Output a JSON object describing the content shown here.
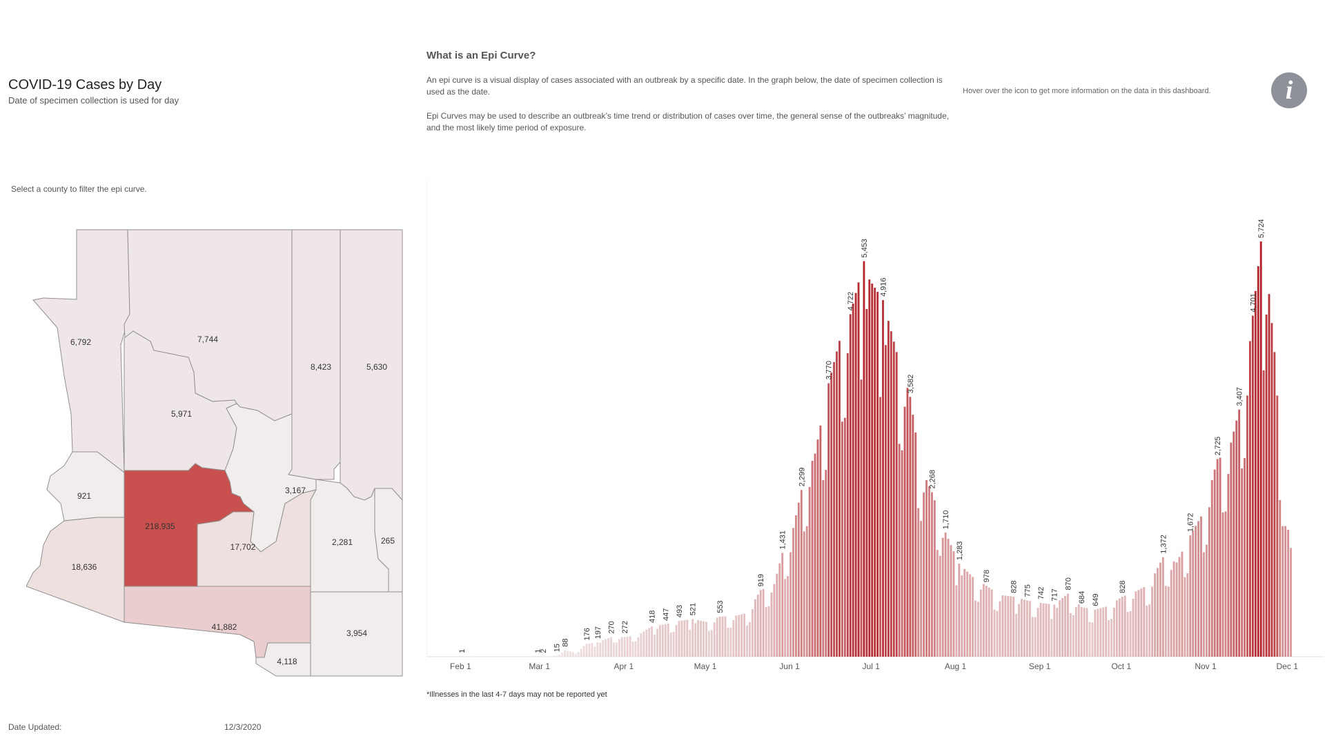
{
  "header": {
    "title": "COVID-19 Cases by Day",
    "subtitle": "Date of specimen collection is used for day"
  },
  "info": {
    "heading": "What is an Epi Curve?",
    "paragraph1": "An epi curve is a visual display of cases associated with an outbreak by a specific date. In the graph below, the date of specimen collection is used as the date.",
    "paragraph2": "Epi Curves may be used to describe an outbreak’s time trend or distribution of cases over time, the general sense of the outbreaks’ magnitude, and the most likely time period of exposure.",
    "hover_hint": "Hover over the icon to get more information on the data in this dashboard.",
    "icon_glyph": "i"
  },
  "map": {
    "instruction": "Select a county to filter the epi curve.",
    "counties": [
      {
        "id": "mohave",
        "value": "6,792",
        "color": "#efe7e7"
      },
      {
        "id": "coconino",
        "value": "7,744",
        "color": "#efe7e7"
      },
      {
        "id": "navajo",
        "value": "8,423",
        "color": "#efe7e7"
      },
      {
        "id": "apache",
        "value": "5,630",
        "color": "#efe7e7"
      },
      {
        "id": "yavapai",
        "value": "5,971",
        "color": "#efe7e7"
      },
      {
        "id": "lapaz",
        "value": "921",
        "color": "#f1eded"
      },
      {
        "id": "maricopa",
        "value": "218,935",
        "color": "#c85150"
      },
      {
        "id": "gila",
        "value": "3,167",
        "color": "#f1eded"
      },
      {
        "id": "yuma",
        "value": "18,636",
        "color": "#efe0e0"
      },
      {
        "id": "pinal",
        "value": "17,702",
        "color": "#efe0e0"
      },
      {
        "id": "graham",
        "value": "2,281",
        "color": "#f1eded"
      },
      {
        "id": "greenlee",
        "value": "265",
        "color": "#f1eded"
      },
      {
        "id": "pima",
        "value": "41,882",
        "color": "#eacdce"
      },
      {
        "id": "cochise",
        "value": "3,954",
        "color": "#f1eded"
      },
      {
        "id": "santacruz",
        "value": "4,118",
        "color": "#f1eded"
      }
    ]
  },
  "chart_data": {
    "type": "bar",
    "title": "COVID-19 Cases by Day",
    "x_axis": {
      "start_date": "2020-01-22",
      "end_date": "2020-12-02",
      "tick_labels": [
        "Feb 1",
        "Mar 1",
        "Apr 1",
        "May 1",
        "Jun 1",
        "Jul 1",
        "Aug 1",
        "Sep 1",
        "Oct 1",
        "Nov 1",
        "Dec 1"
      ],
      "tick_days": [
        10,
        39,
        70,
        100,
        131,
        161,
        192,
        223,
        253,
        284,
        314
      ]
    },
    "ylim": [
      0,
      6200
    ],
    "color_scale": {
      "low": "#f1eaea",
      "high": "#b01c23",
      "max": 5800
    },
    "anchors": [
      [
        0,
        0
      ],
      [
        10,
        1
      ],
      [
        36,
        0
      ],
      [
        38,
        1
      ],
      [
        40,
        2
      ],
      [
        42,
        5
      ],
      [
        45,
        15
      ],
      [
        48,
        88
      ],
      [
        52,
        60
      ],
      [
        56,
        176
      ],
      [
        60,
        197
      ],
      [
        65,
        270
      ],
      [
        70,
        272
      ],
      [
        75,
        300
      ],
      [
        80,
        418
      ],
      [
        85,
        447
      ],
      [
        90,
        493
      ],
      [
        95,
        521
      ],
      [
        100,
        480
      ],
      [
        105,
        553
      ],
      [
        110,
        560
      ],
      [
        115,
        600
      ],
      [
        120,
        919
      ],
      [
        125,
        1000
      ],
      [
        128,
        1431
      ],
      [
        131,
        1600
      ],
      [
        135,
        2299
      ],
      [
        140,
        2800
      ],
      [
        145,
        3770
      ],
      [
        150,
        4500
      ],
      [
        153,
        4722
      ],
      [
        158,
        5453
      ],
      [
        160,
        5200
      ],
      [
        165,
        4916
      ],
      [
        170,
        4200
      ],
      [
        175,
        3582
      ],
      [
        179,
        2600
      ],
      [
        183,
        2268
      ],
      [
        188,
        1710
      ],
      [
        193,
        1283
      ],
      [
        198,
        1100
      ],
      [
        203,
        978
      ],
      [
        208,
        850
      ],
      [
        213,
        828
      ],
      [
        218,
        775
      ],
      [
        223,
        742
      ],
      [
        228,
        717
      ],
      [
        233,
        870
      ],
      [
        238,
        684
      ],
      [
        243,
        649
      ],
      [
        248,
        700
      ],
      [
        253,
        828
      ],
      [
        258,
        900
      ],
      [
        263,
        1000
      ],
      [
        268,
        1372
      ],
      [
        273,
        1300
      ],
      [
        278,
        1672
      ],
      [
        283,
        2000
      ],
      [
        288,
        2725
      ],
      [
        292,
        2800
      ],
      [
        296,
        3407
      ],
      [
        299,
        4000
      ],
      [
        301,
        4701
      ],
      [
        304,
        5724
      ],
      [
        307,
        5000
      ],
      [
        309,
        4200
      ],
      [
        311,
        3000
      ],
      [
        313,
        2000
      ],
      [
        315,
        1500
      ]
    ],
    "data_labels": [
      {
        "day": 10,
        "value": 1
      },
      {
        "day": 38,
        "value": 1
      },
      {
        "day": 40,
        "value": 2
      },
      {
        "day": 45,
        "value": 15
      },
      {
        "day": 48,
        "value": 88
      },
      {
        "day": 56,
        "value": 176
      },
      {
        "day": 60,
        "value": 197
      },
      {
        "day": 65,
        "value": 270
      },
      {
        "day": 70,
        "value": 272
      },
      {
        "day": 80,
        "value": 418
      },
      {
        "day": 85,
        "value": 447
      },
      {
        "day": 90,
        "value": 493
      },
      {
        "day": 95,
        "value": 521
      },
      {
        "day": 105,
        "value": 553
      },
      {
        "day": 120,
        "value": 919
      },
      {
        "day": 128,
        "value": 1431
      },
      {
        "day": 135,
        "value": 2299
      },
      {
        "day": 145,
        "value": 3770
      },
      {
        "day": 153,
        "value": 4722
      },
      {
        "day": 158,
        "value": 5453
      },
      {
        "day": 165,
        "value": 4916
      },
      {
        "day": 175,
        "value": 3582
      },
      {
        "day": 183,
        "value": 2268
      },
      {
        "day": 188,
        "value": 1710
      },
      {
        "day": 193,
        "value": 1283
      },
      {
        "day": 203,
        "value": 978
      },
      {
        "day": 213,
        "value": 828
      },
      {
        "day": 218,
        "value": 775
      },
      {
        "day": 223,
        "value": 742
      },
      {
        "day": 228,
        "value": 717
      },
      {
        "day": 233,
        "value": 870
      },
      {
        "day": 238,
        "value": 684
      },
      {
        "day": 243,
        "value": 649
      },
      {
        "day": 253,
        "value": 828
      },
      {
        "day": 268,
        "value": 1372
      },
      {
        "day": 278,
        "value": 1672
      },
      {
        "day": 288,
        "value": 2725
      },
      {
        "day": 296,
        "value": 3407
      },
      {
        "day": 301,
        "value": 4701
      },
      {
        "day": 304,
        "value": 5724
      }
    ]
  },
  "footer": {
    "footnote": "*Illnesses in the last 4-7 days may not be reported yet",
    "date_label": "Date Updated:",
    "date_value": "12/3/2020"
  }
}
